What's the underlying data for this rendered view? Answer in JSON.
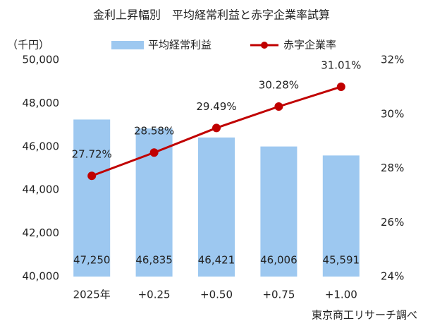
{
  "chart_data": {
    "type": "combo",
    "title": "金利上昇幅別　平均経常利益と赤字企業率試算",
    "ylabel": "（千円）",
    "source": "東京商工リサーチ調べ",
    "categories": [
      "2025年",
      "+0.25",
      "+0.50",
      "+0.75",
      "+1.00"
    ],
    "series": [
      {
        "name": "平均経常利益",
        "type": "bar",
        "color": "#9dc8f0",
        "values": [
          47250,
          46835,
          46421,
          46006,
          45591
        ],
        "value_labels": [
          "47,250",
          "46,835",
          "46,421",
          "46,006",
          "45,591"
        ]
      },
      {
        "name": "赤字企業率",
        "type": "line",
        "axis": "y2",
        "color": "#c00000",
        "values": [
          27.72,
          28.58,
          29.49,
          30.28,
          31.01
        ],
        "value_labels": [
          "27.72%",
          "28.58%",
          "29.49%",
          "30.28%",
          "31.01%"
        ]
      }
    ],
    "ylim": [
      40000,
      50000
    ],
    "yticks": [
      {
        "value": 40000,
        "label": "40,000"
      },
      {
        "value": 42000,
        "label": "42,000"
      },
      {
        "value": 44000,
        "label": "44,000"
      },
      {
        "value": 46000,
        "label": "46,000"
      },
      {
        "value": 48000,
        "label": "48,000"
      },
      {
        "value": 50000,
        "label": "50,000"
      }
    ],
    "y2lim": [
      24,
      32
    ],
    "y2ticks": [
      {
        "value": 24,
        "label": "24%"
      },
      {
        "value": 26,
        "label": "26%"
      },
      {
        "value": 28,
        "label": "28%"
      },
      {
        "value": 30,
        "label": "30%"
      },
      {
        "value": 32,
        "label": "32%"
      }
    ],
    "grid": false
  }
}
